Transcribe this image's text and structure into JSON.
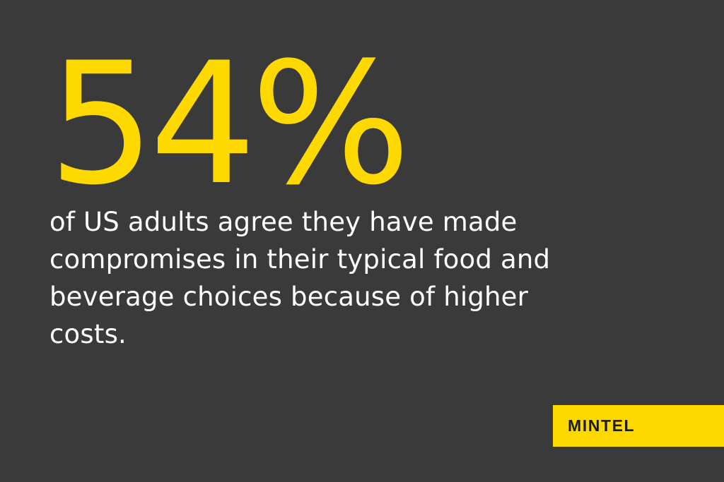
{
  "headline": {
    "stat": "54%"
  },
  "body": {
    "text": "of US adults agree they have made compromises in their typical food and beverage choices because of higher costs."
  },
  "brand": {
    "logo_text": "MINTEL"
  },
  "colors": {
    "background": "#3a3a3a",
    "accent": "#fdd900",
    "text": "#ffffff",
    "logo_text": "#1c1c1c"
  }
}
